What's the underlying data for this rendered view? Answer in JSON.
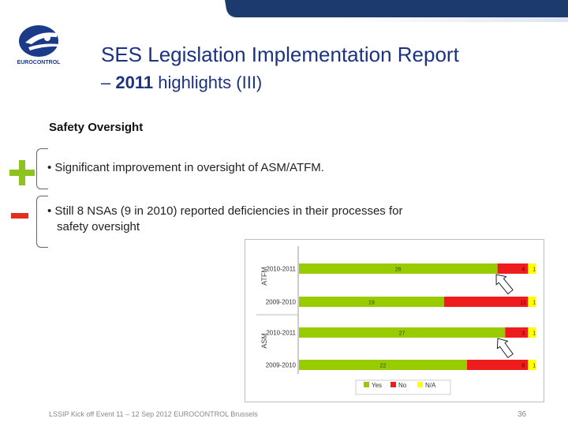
{
  "logo": {
    "text": "EUROCONTROL"
  },
  "title": {
    "line1": "SES Legislation Implementation Report",
    "line2_prefix": "– ",
    "line2_year": "2011",
    "line2_suffix": " highlights (III)"
  },
  "section_title": "Safety Oversight",
  "bullets": [
    {
      "marker": "plus",
      "text": "• Significant improvement in oversight of ASM/ATFM."
    },
    {
      "marker": "minus",
      "line1": "• Still 8 NSAs (9 in 2010) reported deficiencies in their processes for",
      "line2": "safety oversight"
    }
  ],
  "colors": {
    "yes": "#99cc00",
    "no": "#ee1c1c",
    "na": "#ffff00",
    "title": "#1c3380",
    "plus": "#8dc21f",
    "minus": "#e0301e"
  },
  "chart_data": {
    "type": "bar",
    "orientation": "horizontal",
    "stacked": true,
    "groups": [
      {
        "name": "ATFM",
        "rows": [
          {
            "period": "2010-2011",
            "yes": 26,
            "no": 4,
            "na": 1
          },
          {
            "period": "2009-2010",
            "yes": 19,
            "no": 11,
            "na": 1
          }
        ]
      },
      {
        "name": "ASM",
        "rows": [
          {
            "period": "2010-2011",
            "yes": 27,
            "no": 3,
            "na": 1
          },
          {
            "period": "2009-2010",
            "yes": 22,
            "no": 8,
            "na": 1
          }
        ]
      }
    ],
    "legend": [
      {
        "key": "yes",
        "label": "Yes"
      },
      {
        "key": "no",
        "label": "No"
      },
      {
        "key": "na",
        "label": "N/A"
      }
    ],
    "legend_position": "bottom",
    "xlim": [
      0,
      31
    ]
  },
  "footer": "LSSIP Kick off Event 11 – 12 Sep 2012 EUROCONTROL Brussels",
  "page_number": "36"
}
